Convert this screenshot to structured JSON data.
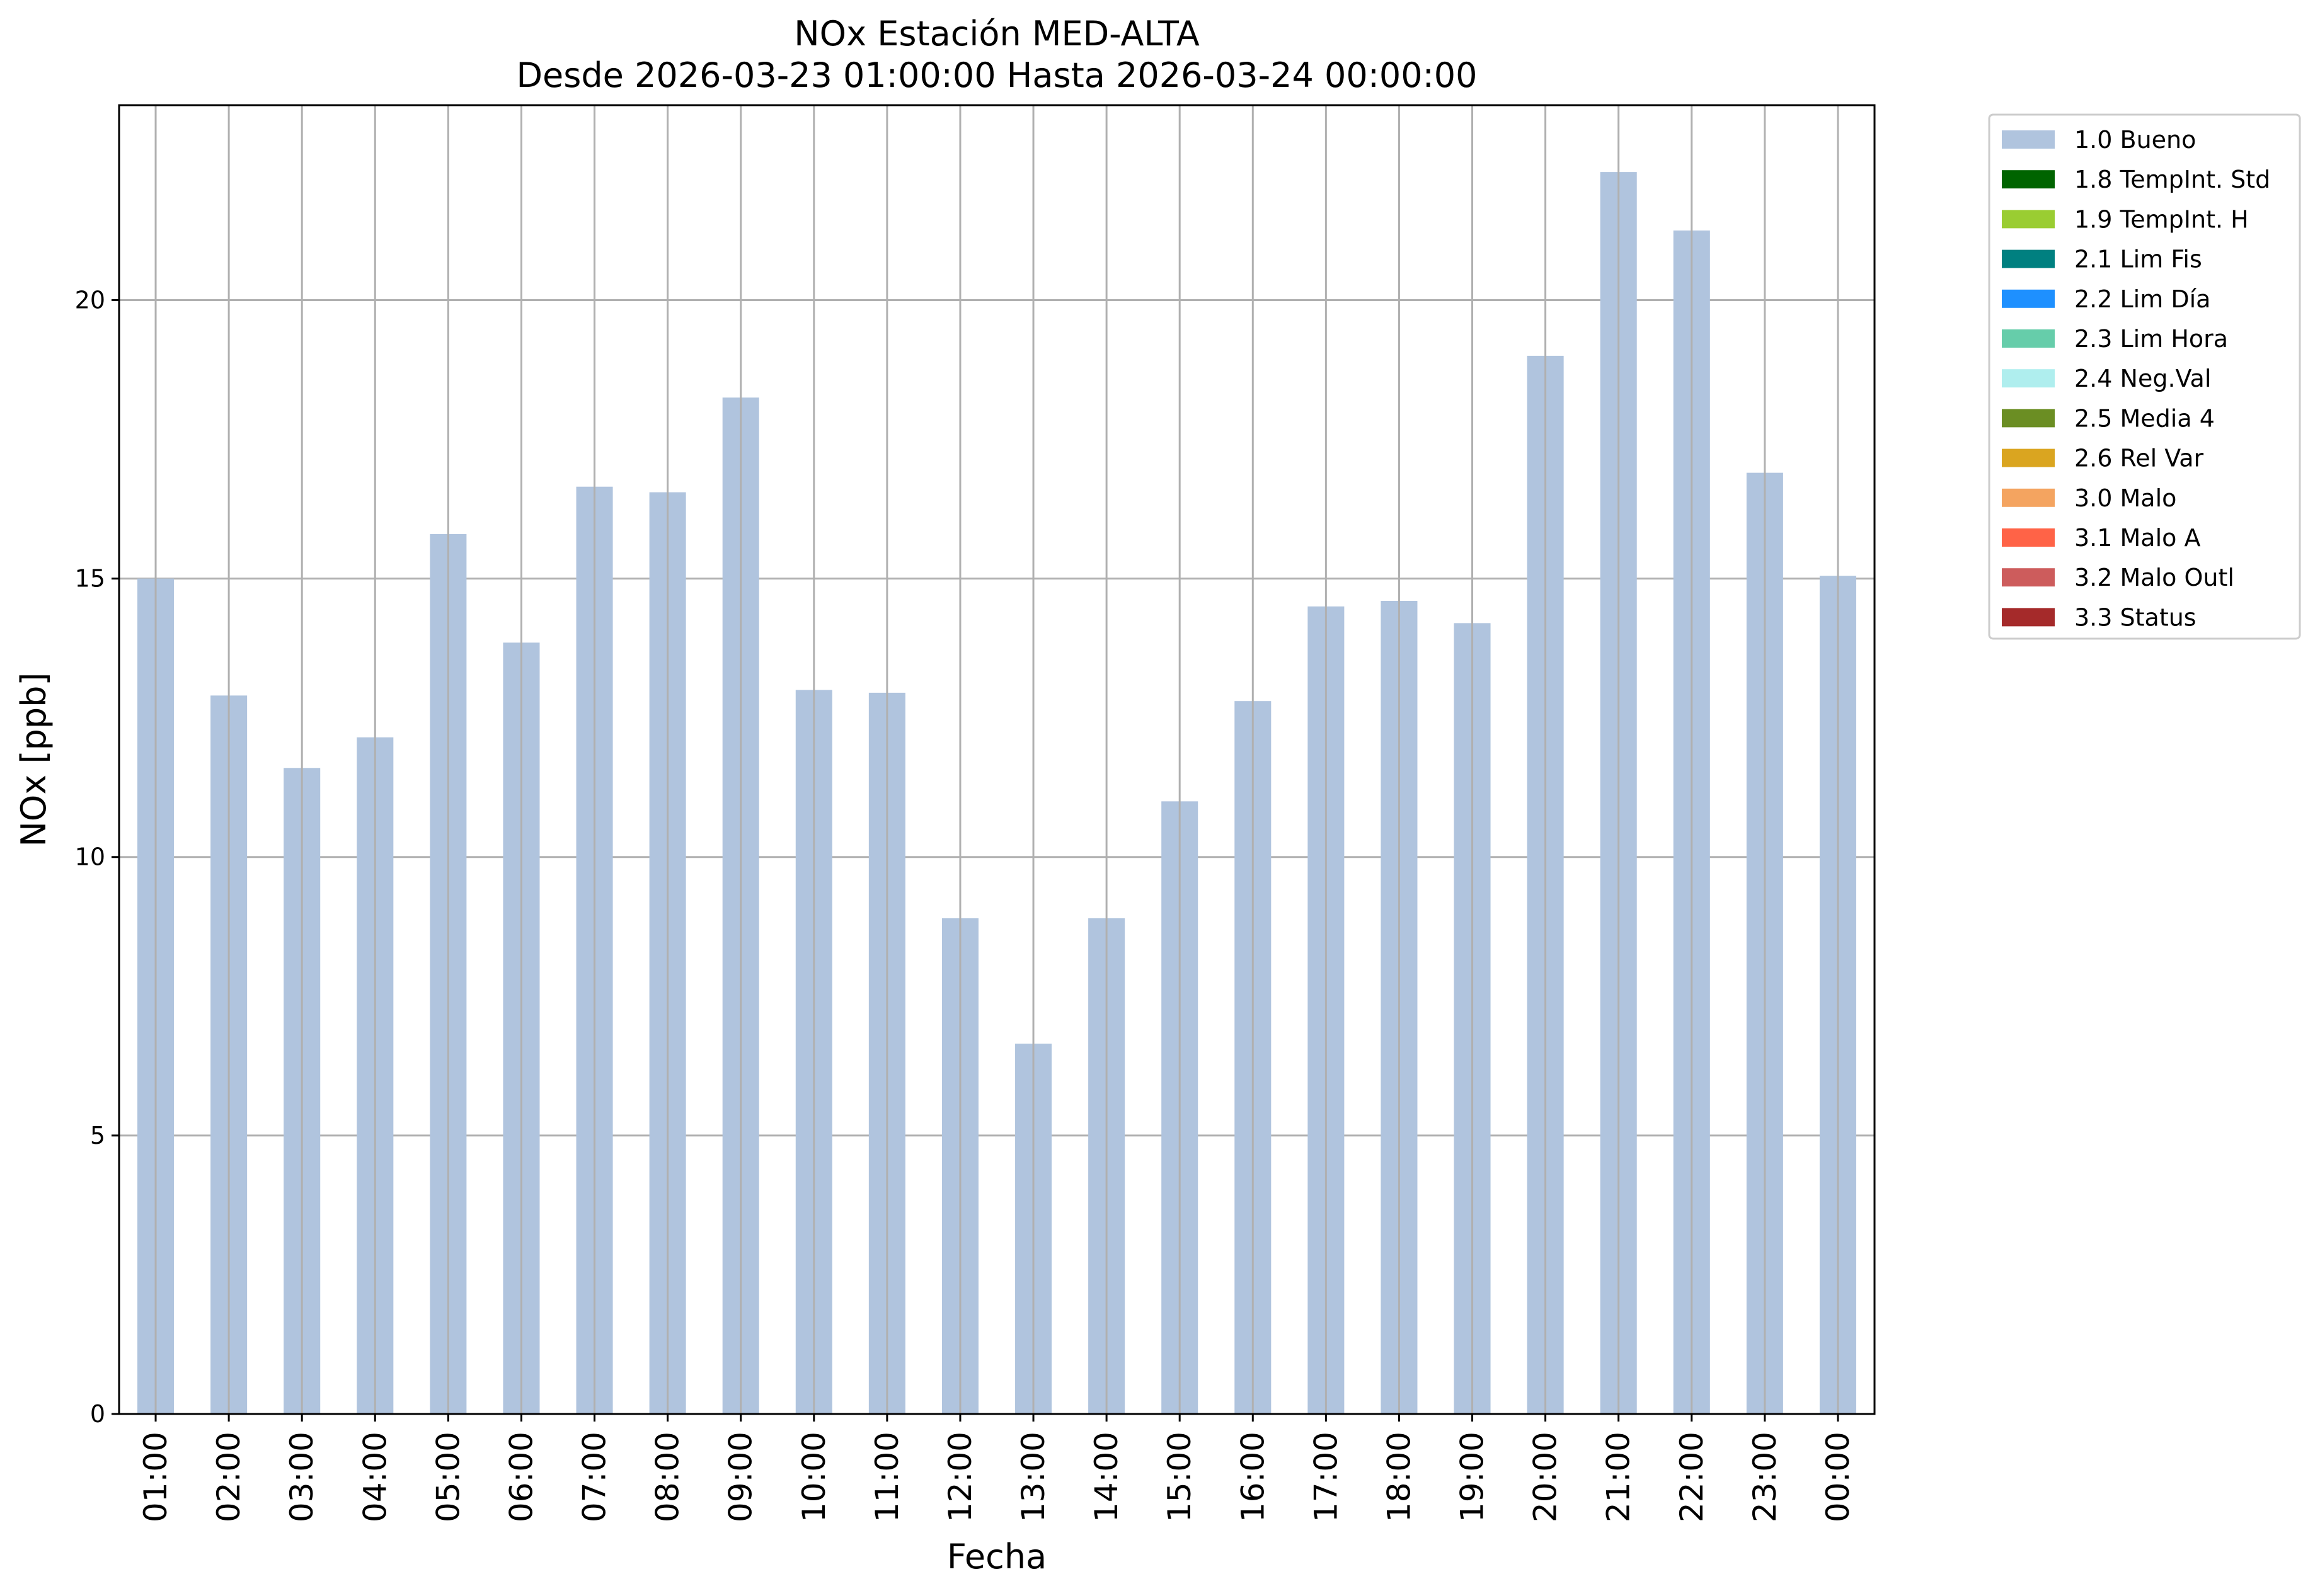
{
  "chart_data": {
    "type": "bar",
    "title": "NOx Estación MED-ALTA",
    "subtitle": "Desde 2026-03-23 01:00:00 Hasta 2026-03-24 00:00:00",
    "xlabel": "Fecha",
    "ylabel": "NOx [ppb]",
    "ylim": [
      0,
      23.5
    ],
    "yticks": [
      0,
      5,
      10,
      15,
      20
    ],
    "grid": true,
    "legend_position": "outside-top-right",
    "categories": [
      "01:00",
      "02:00",
      "03:00",
      "04:00",
      "05:00",
      "06:00",
      "07:00",
      "08:00",
      "09:00",
      "10:00",
      "11:00",
      "12:00",
      "13:00",
      "14:00",
      "15:00",
      "16:00",
      "17:00",
      "18:00",
      "19:00",
      "20:00",
      "21:00",
      "22:00",
      "23:00",
      "00:00"
    ],
    "series": [
      {
        "name": "1.0 Bueno",
        "color": "#b0c4de",
        "values": [
          15.0,
          12.9,
          11.6,
          12.15,
          15.8,
          13.85,
          16.65,
          16.55,
          18.25,
          13.0,
          12.95,
          8.9,
          6.65,
          8.9,
          11.0,
          12.8,
          14.5,
          14.6,
          14.2,
          19.0,
          22.3,
          21.25,
          16.9,
          15.05
        ]
      }
    ],
    "legend": [
      {
        "label": "1.0 Bueno",
        "color": "#b0c4de"
      },
      {
        "label": "1.8 TempInt. Std",
        "color": "#006400"
      },
      {
        "label": "1.9 TempInt. H",
        "color": "#9acd32"
      },
      {
        "label": "2.1 Lim Fis",
        "color": "#008080"
      },
      {
        "label": "2.2 Lim Día",
        "color": "#1e90ff"
      },
      {
        "label": "2.3 Lim Hora",
        "color": "#66cdaa"
      },
      {
        "label": "2.4 Neg.Val",
        "color": "#afeeee"
      },
      {
        "label": "2.5 Media 4",
        "color": "#6b8e23"
      },
      {
        "label": "2.6 Rel Var",
        "color": "#daa520"
      },
      {
        "label": "3.0 Malo",
        "color": "#f4a460"
      },
      {
        "label": "3.1 Malo A",
        "color": "#ff6347"
      },
      {
        "label": "3.2 Malo Outl",
        "color": "#cd5c5c"
      },
      {
        "label": "3.3 Status",
        "color": "#a52a2a"
      }
    ]
  }
}
